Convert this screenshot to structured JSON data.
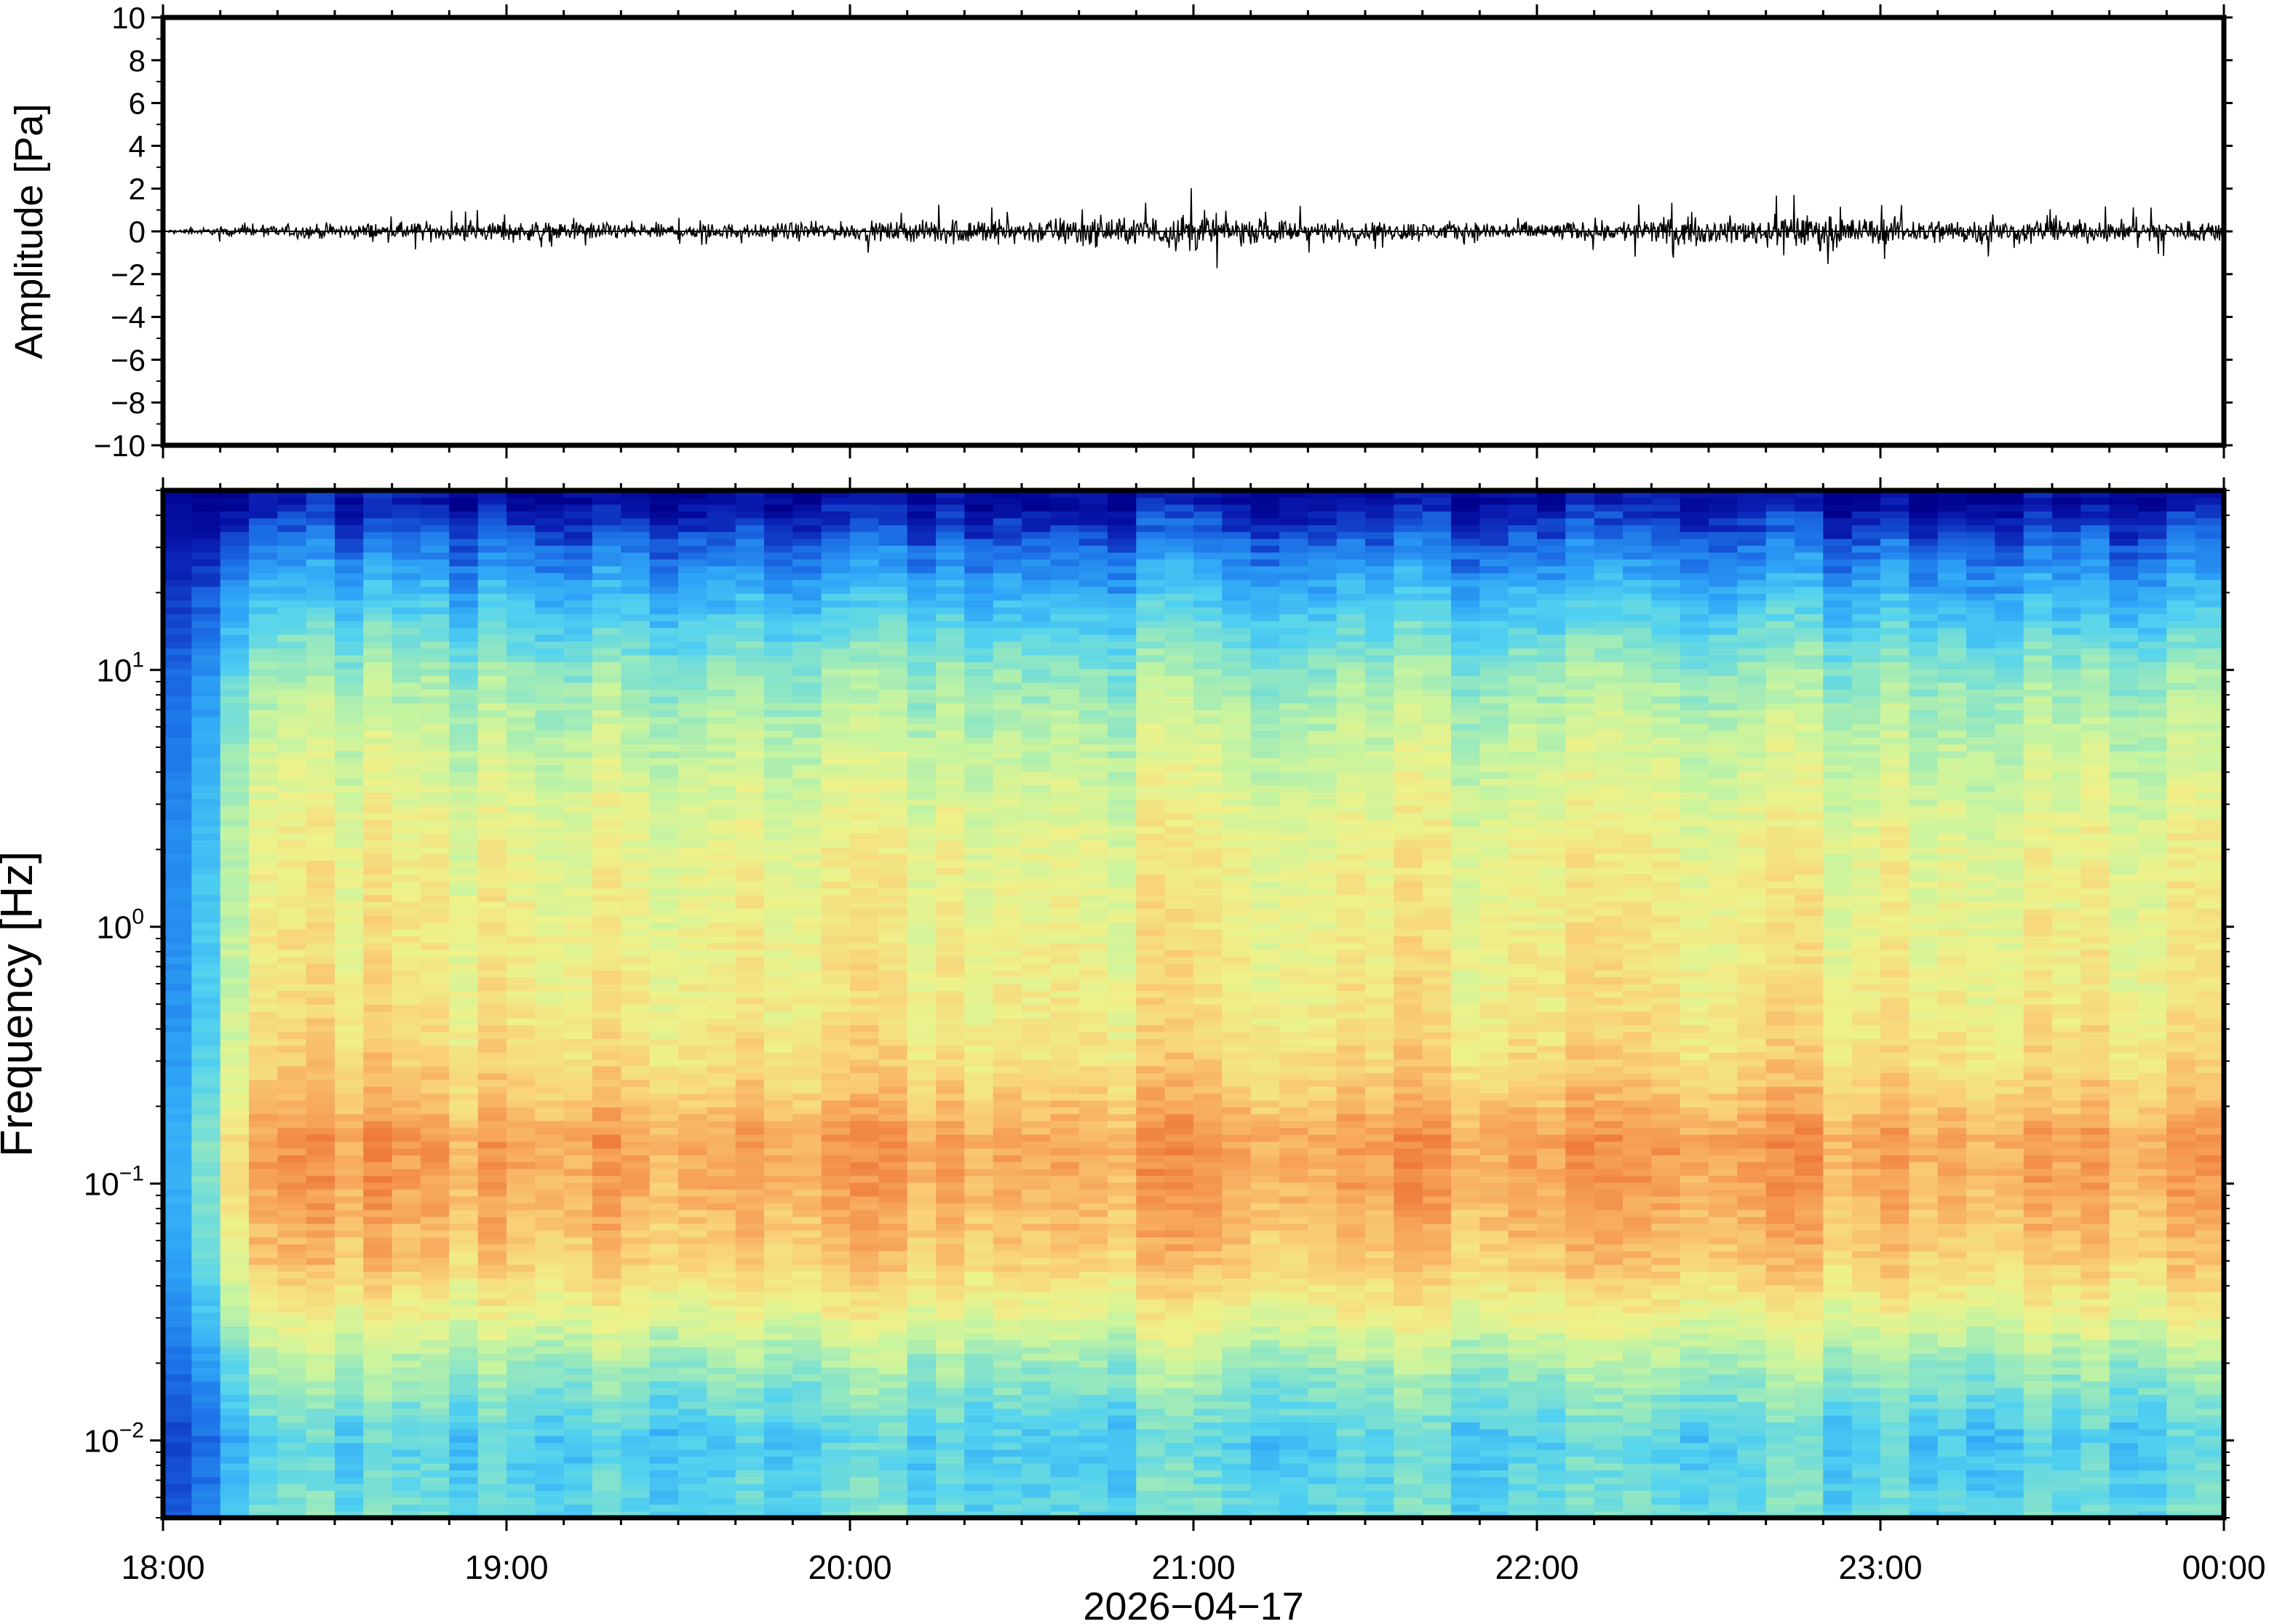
{
  "chart_data": [
    {
      "type": "line",
      "panel": "waveform",
      "ylabel": "Amplitude [Pa]",
      "ylim": [
        -10,
        10
      ],
      "yticks": [
        "10",
        "8",
        "6",
        "4",
        "2",
        "0",
        "−2",
        "−4",
        "−6",
        "−8",
        "−10"
      ],
      "ytick_values": [
        10,
        8,
        6,
        4,
        2,
        0,
        -2,
        -4,
        -6,
        -8,
        -10
      ],
      "x_range": [
        "2026-04-17 18:00",
        "2026-04-18 00:00"
      ],
      "series": [
        {
          "x": [
            "18:00",
            "18:10",
            "18:20",
            "18:30",
            "18:40",
            "18:50",
            "19:00",
            "19:10",
            "19:20",
            "19:30",
            "19:40",
            "19:50",
            "20:00",
            "20:10",
            "20:20",
            "20:30",
            "20:40",
            "20:50",
            "21:00",
            "21:10",
            "21:20",
            "21:30",
            "21:40",
            "21:50",
            "22:00",
            "22:10",
            "22:20",
            "22:30",
            "22:40",
            "22:50",
            "23:00",
            "23:10",
            "23:20",
            "23:30",
            "23:40",
            "23:50",
            "00:00"
          ],
          "envelope": [
            0.1,
            0.4,
            0.6,
            0.7,
            0.8,
            0.8,
            0.9,
            0.8,
            0.8,
            0.7,
            0.7,
            0.8,
            0.8,
            0.9,
            1.3,
            1.1,
            1.4,
            1.2,
            1.8,
            1.1,
            1.0,
            0.9,
            0.9,
            0.9,
            0.9,
            0.8,
            1.2,
            1.1,
            1.4,
            1.5,
            1.2,
            1.2,
            1.1,
            1.0,
            1.0,
            1.0,
            1.0
          ]
        }
      ]
    },
    {
      "type": "heatmap",
      "panel": "spectrogram",
      "ylabel": "Frequency [Hz]",
      "xlabel": "2026−04−17",
      "yscale": "log",
      "ylim": [
        0.005,
        50
      ],
      "yticks": [
        {
          "base": "10",
          "exp": "1",
          "value": 10
        },
        {
          "base": "10",
          "exp": "0",
          "value": 1
        },
        {
          "base": "10",
          "exp": "−1",
          "value": 0.1
        },
        {
          "base": "10",
          "exp": "−2",
          "value": 0.01
        }
      ],
      "xticks": [
        "18:00",
        "19:00",
        "20:00",
        "21:00",
        "22:00",
        "23:00",
        "00:00"
      ],
      "colormap": [
        "#00008c",
        "#0a1fb4",
        "#1c6fe6",
        "#2fa6f7",
        "#52d2f0",
        "#8ee6c4",
        "#c6f4a0",
        "#eef28a",
        "#f9d27a",
        "#f7a65c",
        "#ee7a3c"
      ],
      "description_profile": {
        "frequency_hz": [
          0.005,
          0.01,
          0.02,
          0.03,
          0.05,
          0.1,
          0.15,
          0.2,
          0.3,
          0.5,
          1,
          2,
          5,
          10,
          20,
          30,
          45
        ],
        "relative_power": [
          0.45,
          0.4,
          0.55,
          0.68,
          0.82,
          0.9,
          0.92,
          0.85,
          0.78,
          0.74,
          0.72,
          0.7,
          0.62,
          0.52,
          0.34,
          0.22,
          0.06
        ]
      }
    }
  ]
}
